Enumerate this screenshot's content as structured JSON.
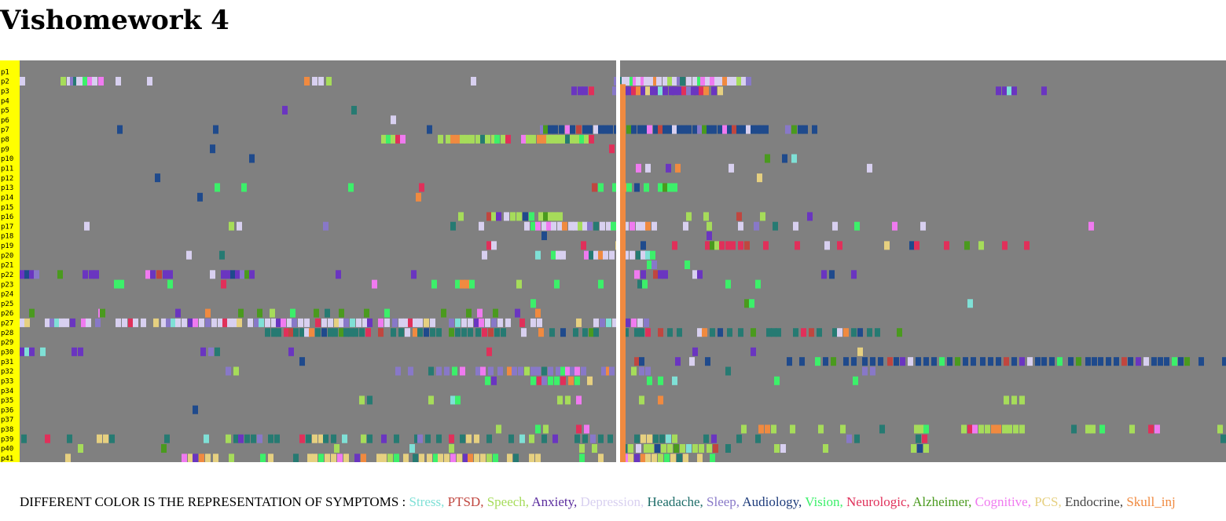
{
  "page": {
    "title": "Vishomework 4"
  },
  "legend": {
    "prefix": "DIFFERENT COLOR IS THE REPRESENTATION OF SYMPTOMS :",
    "items": [
      {
        "label": "Stress,",
        "color": "#7fe0d6"
      },
      {
        "label": "PTSD,",
        "color": "#c0463f"
      },
      {
        "label": "Speech,",
        "color": "#a6dc5a"
      },
      {
        "label": "Anxiety,",
        "color": "#5b2d9e"
      },
      {
        "label": "Depression,",
        "color": "#d8d0f0"
      },
      {
        "label": "Headache,",
        "color": "#1f6e6a"
      },
      {
        "label": "Sleep,",
        "color": "#8878c8"
      },
      {
        "label": "Audiology,",
        "color": "#1c3a7a"
      },
      {
        "label": "Vision,",
        "color": "#3cf06a"
      },
      {
        "label": "Neurologic,",
        "color": "#e0305a"
      },
      {
        "label": "Alzheimer,",
        "color": "#4a9a1e"
      },
      {
        "label": "Cognitive,",
        "color": "#f07af0"
      },
      {
        "label": "PCS,",
        "color": "#e6d080"
      },
      {
        "label": "Endocrine,",
        "color": "#444444"
      },
      {
        "label": "Skull_inj",
        "color": "#f08a40"
      }
    ]
  },
  "chart_data": {
    "type": "heatmap",
    "title": "",
    "xlabel": "",
    "ylabel": "",
    "background_color": "#808080",
    "label_strip_color": "#ffff00",
    "reference_line_color": "#ffffff",
    "rows": [
      "p1",
      "p2",
      "p3",
      "p4",
      "p5",
      "p6",
      "p7",
      "p8",
      "p9",
      "p10",
      "p11",
      "p12",
      "p13",
      "p14",
      "p15",
      "p16",
      "p17",
      "p18",
      "p19",
      "p20",
      "p21",
      "p22",
      "p23",
      "p24",
      "p25",
      "p26",
      "p27",
      "p28",
      "p29",
      "p30",
      "p31",
      "p32",
      "p33",
      "p34",
      "p35",
      "p36",
      "p37",
      "p38",
      "p39",
      "p40",
      "p41"
    ],
    "symptom_colors": {
      "Stress": "#7fe0d6",
      "PTSD": "#c0463f",
      "Speech": "#a6dc5a",
      "Anxiety": "#6a35c0",
      "Depression": "#d8d0f0",
      "Headache": "#267a72",
      "Sleep": "#8878c8",
      "Audiology": "#1f4a8c",
      "Vision": "#3cf06a",
      "Neurologic": "#e0305a",
      "Alzheimer": "#4a9a1e",
      "Cognitive": "#f07af0",
      "PCS": "#e6d080",
      "Endocrine": "#444444",
      "Skull_inj": "#f08a40"
    },
    "timeline_x_range": [
      0,
      1535
    ],
    "reference_x": 762,
    "events": [
      {
        "p": "p2",
        "s": "Depression",
        "x": [
          0,
          52,
          60,
          64,
          68,
          72,
          76,
          80,
          86,
          92,
          100,
          122,
          162,
          362,
          372,
          380,
          390,
          574,
          756,
          760,
          766,
          770,
          776,
          780,
          784,
          790,
          794,
          800,
          806,
          810,
          818,
          824,
          830,
          836,
          840,
          848,
          856,
          862,
          866,
          872,
          878,
          884,
          888,
          894,
          900,
          906,
          912,
          918,
          924
        ]
      },
      {
        "p": "p3",
        "s": "Anxiety",
        "x": [
          702,
          710,
          716,
          724,
          754,
          766,
          772,
          778,
          784,
          790,
          796,
          802,
          808,
          812,
          818,
          826,
          830,
          836,
          842,
          848,
          854,
          858,
          864,
          870,
          880,
          888,
          1242,
          1250,
          1256,
          1262,
          1300
        ]
      },
      {
        "p": "p5",
        "s": "Anxiety",
        "x": [
          334,
          422
        ]
      },
      {
        "p": "p6",
        "s": "Depression",
        "x": [
          472
        ]
      },
      {
        "p": "p7",
        "s": "Audiology",
        "x": [
          124,
          246,
          518,
          662,
          666,
          672,
          678,
          686,
          694,
          700,
          708,
          716,
          722,
          730,
          736,
          742,
          748,
          756,
          764,
          772,
          778,
          786,
          792,
          798,
          806,
          812,
          818,
          824,
          830,
          836,
          842,
          848,
          856,
          862,
          868,
          874,
          880,
          888,
          894,
          900,
          906,
          912,
          918,
          924,
          930,
          936,
          940,
          946,
          974,
          982,
          990,
          996,
          1008
        ]
      },
      {
        "p": "p8",
        "s": "Speech",
        "x": [
          460,
          466,
          472,
          478,
          484,
          532,
          542,
          548,
          554,
          560,
          566,
          572,
          580,
          586,
          592,
          600,
          604,
          612,
          618,
          638,
          644,
          650,
          658,
          664,
          670,
          676,
          682,
          688,
          694,
          700,
          706,
          712,
          718,
          724
        ]
      },
      {
        "p": "p9",
        "s": "Audiology",
        "x": [
          242,
          750
        ]
      },
      {
        "p": "p10",
        "s": "Audiology",
        "x": [
          292,
          948,
          970,
          982
        ]
      },
      {
        "p": "p11",
        "s": "Depression",
        "x": [
          762,
          784,
          796,
          822,
          834,
          902,
          1078
        ]
      },
      {
        "p": "p12",
        "s": "Audiology",
        "x": [
          172,
          938
        ]
      },
      {
        "p": "p13",
        "s": "Vision",
        "x": [
          248,
          282,
          418,
          508,
          728,
          736,
          754,
          760,
          766,
          772,
          782,
          794,
          812,
          818,
          824,
          830
        ]
      },
      {
        "p": "p14",
        "s": "Audiology",
        "x": [
          226,
          504
        ]
      },
      {
        "p": "p16",
        "s": "Speech",
        "x": [
          558,
          594,
          600,
          606,
          616,
          624,
          632,
          640,
          648,
          660,
          666,
          672,
          678,
          684,
          848,
          870,
          912,
          942,
          1002
        ]
      },
      {
        "p": "p17",
        "s": "Depression",
        "x": [
          82,
          266,
          276,
          386,
          548,
          584,
          642,
          650,
          656,
          664,
          670,
          676,
          684,
          690,
          698,
          704,
          710,
          716,
          722,
          730,
          738,
          746,
          752,
          760,
          768,
          776,
          784,
          790,
          796,
          804,
          844,
          874,
          914,
          934,
          958,
          984,
          1034,
          1062,
          1110,
          1146,
          1360
        ]
      },
      {
        "p": "p18",
        "s": "Audiology",
        "x": [
          664,
          874
        ]
      },
      {
        "p": "p19",
        "s": "Neurologic",
        "x": [
          594,
          600,
          714,
          758,
          790,
          830,
          872,
          878,
          884,
          890,
          898,
          904,
          914,
          922,
          946,
          986,
          1024,
          1040,
          1100,
          1132,
          1138,
          1176,
          1202,
          1220,
          1250,
          1278
        ]
      },
      {
        "p": "p20",
        "s": "Depression",
        "x": [
          212,
          254,
          588,
          656,
          676,
          682,
          688,
          718,
          724,
          730,
          736,
          742,
          750,
          760,
          768,
          776,
          784,
          790,
          796,
          802
        ]
      },
      {
        "p": "p21",
        "s": "Vision",
        "x": [
          798,
          804,
          846
        ]
      },
      {
        "p": "p22",
        "s": "Anxiety",
        "x": [
          0,
          6,
          12,
          18,
          48,
          80,
          88,
          94,
          160,
          166,
          174,
          182,
          188,
          242,
          256,
          262,
          268,
          274,
          280,
          286,
          292,
          402,
          498,
          782,
          790,
          806,
          812,
          818,
          856,
          862,
          1020,
          1030,
          1058
        ]
      },
      {
        "p": "p23",
        "s": "Vision",
        "x": [
          120,
          126,
          188,
          256,
          448,
          524,
          554,
          560,
          566,
          572,
          632,
          680,
          736,
          786,
          792,
          898,
          936
        ]
      },
      {
        "p": "p24",
        "s": "Skull_inj",
        "x": [
          762
        ]
      },
      {
        "p": "p25",
        "s": "Vision",
        "x": [
          650,
          922,
          928,
          1206
        ]
      },
      {
        "p": "p26",
        "s": "Alzheimer",
        "x": [
          12,
          100,
          102,
          198,
          236,
          278,
          302,
          318,
          344,
          374,
          388,
          406,
          438,
          464,
          536,
          568,
          582,
          602,
          630,
          656
        ]
      },
      {
        "p": "p27",
        "s": "Depression",
        "x": [
          0,
          6,
          32,
          38,
          44,
          50,
          56,
          64,
          78,
          84,
          96,
          122,
          130,
          138,
          144,
          154,
          170,
          180,
          186,
          192,
          198,
          206,
          214,
          220,
          228,
          236,
          244,
          252,
          258,
          264,
          270,
          276,
          290,
          298,
          304,
          312,
          320,
          326,
          332,
          340,
          346,
          354,
          362,
          376,
          384,
          392,
          400,
          406,
          412,
          420,
          428,
          436,
          442,
          456,
          464,
          474,
          482,
          488,
          494,
          500,
          506,
          514,
          522,
          546,
          554,
          562,
          570,
          578,
          584,
          592,
          600,
          608,
          618,
          636,
          650,
          658,
          708,
          730,
          738,
          746,
          754,
          762,
          770,
          778,
          786,
          794
        ]
      },
      {
        "p": "p28",
        "s": "Headache",
        "x": [
          312,
          320,
          326,
          336,
          342,
          348,
          356,
          362,
          368,
          376,
          384,
          392,
          398,
          406,
          412,
          418,
          424,
          432,
          440,
          456,
          472,
          482,
          490,
          500,
          506,
          514,
          522,
          530,
          546,
          554,
          562,
          570,
          580,
          588,
          596,
          604,
          612,
          638,
          660,
          674,
          688,
          704,
          716,
          724,
          730,
          768,
          782,
          788,
          796,
          812,
          824,
          836,
          862,
          868,
          878,
          888,
          900,
          914,
          930,
          950,
          956,
          962,
          984,
          994,
          1004,
          1014,
          1034,
          1040,
          1048,
          1058,
          1066,
          1078,
          1088,
          1116
        ]
      },
      {
        "p": "p30",
        "s": "Anxiety",
        "x": [
          0,
          6,
          12,
          26,
          66,
          74,
          230,
          240,
          248,
          342,
          594,
          856,
          930,
          1066
        ]
      },
      {
        "p": "p31",
        "s": "Audiology",
        "x": [
          356,
          782,
          788,
          834,
          852,
          872,
          976,
          992,
          1012,
          1022,
          1032,
          1048,
          1058,
          1072,
          1082,
          1092,
          1104,
          1112,
          1120,
          1130,
          1140,
          1150,
          1160,
          1170,
          1180,
          1190,
          1200,
          1210,
          1222,
          1232,
          1242,
          1252,
          1262,
          1272,
          1282,
          1292,
          1300,
          1310,
          1320,
          1334,
          1344,
          1356,
          1364,
          1372,
          1382,
          1392,
          1402,
          1410,
          1420,
          1430,
          1440,
          1448,
          1456,
          1466,
          1474,
          1482,
          1500,
          1530
        ]
      },
      {
        "p": "p32",
        "s": "Sleep",
        "x": [
          262,
          272,
          478,
          494,
          520,
          530,
          540,
          550,
          560,
          580,
          586,
          596,
          608,
          620,
          626,
          634,
          642,
          650,
          656,
          664,
          672,
          682,
          688,
          694,
          700,
          706,
          714,
          740,
          746,
          750,
          760,
          778,
          788,
          796,
          898,
          1072,
          1082
        ]
      },
      {
        "p": "p33",
        "s": "Vision",
        "x": [
          592,
          600,
          650,
          658,
          664,
          672,
          680,
          688,
          698,
          706,
          722,
          798,
          812,
          830,
          960,
          1060
        ]
      },
      {
        "p": "p34",
        "s": "Skull_inj",
        "x": [
          762
        ]
      },
      {
        "p": "p35",
        "s": "Speech",
        "x": [
          432,
          442,
          520,
          548,
          554,
          684,
          694,
          708,
          762,
          788,
          812,
          1252,
          1262,
          1272
        ]
      },
      {
        "p": "p36",
        "s": "Audiology",
        "x": [
          220,
          762
        ]
      },
      {
        "p": "p37",
        "s": "Skull_inj",
        "x": [
          762
        ]
      },
      {
        "p": "p38",
        "s": "Speech",
        "x": [
          606,
          656,
          666,
          708,
          718,
          762,
          918,
          940,
          948,
          956,
          980,
          1016,
          1044,
          1094,
          1138,
          1144,
          1150,
          1198,
          1206,
          1212,
          1220,
          1228,
          1236,
          1242,
          1250,
          1256,
          1264,
          1272,
          1338,
          1356,
          1362,
          1374,
          1412,
          1436,
          1444,
          1524
        ]
      },
      {
        "p": "p39",
        "s": "Headache",
        "x": [
          2,
          32,
          60,
          98,
          106,
          114,
          184,
          234,
          262,
          272,
          278,
          286,
          294,
          302,
          316,
          324,
          356,
          364,
          372,
          380,
          386,
          396,
          410,
          434,
          442,
          460,
          476,
          502,
          506,
          516,
          530,
          546,
          560,
          568,
          578,
          594,
          622,
          636,
          648,
          664,
          678,
          706,
          716,
          726,
          736,
          748,
          760,
          782,
          790,
          798,
          806,
          814,
          822,
          830,
          870,
          880,
          912,
          936,
          1052,
          1062,
          1140,
          1148,
          1528
        ]
      },
      {
        "p": "p40",
        "s": "Speech",
        "x": [
          74,
          180,
          400,
          496,
          546,
          712,
          728,
          762,
          766,
          774,
          784,
          794,
          800,
          808,
          816,
          824,
          832,
          840,
          848,
          856,
          864,
          874,
          882,
          898,
          960,
          968,
          1022,
          1134,
          1142,
          1150
        ]
      },
      {
        "p": "p41",
        "s": "PCS",
        "x": [
          58,
          206,
          214,
          220,
          228,
          236,
          246,
          266,
          306,
          316,
          348,
          366,
          372,
          380,
          388,
          396,
          404,
          412,
          426,
          434,
          454,
          460,
          468,
          476,
          488,
          500,
          508,
          518,
          526,
          532,
          540,
          548,
          556,
          564,
          570,
          578,
          586,
          594,
          602,
          620,
          628,
          648,
          656,
          712,
          736,
          762,
          768,
          774,
          782,
          790,
          796,
          804,
          812,
          820,
          828,
          836,
          844,
          862,
          878
        ]
      }
    ]
  }
}
